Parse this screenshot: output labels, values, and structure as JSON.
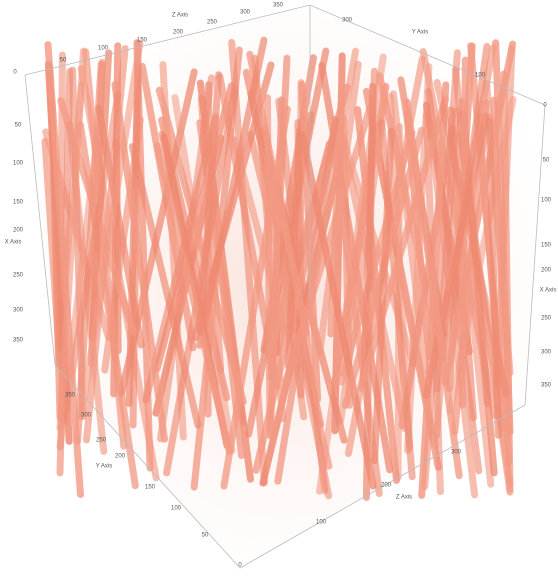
{
  "axes": {
    "z_top": {
      "label": "Z Axis",
      "ticks": [
        "0",
        "50",
        "100",
        "150",
        "200",
        "250",
        "300",
        "350"
      ]
    },
    "y_top": {
      "label": "Y Axis",
      "ticks": [
        "300",
        "100",
        "0"
      ]
    },
    "x_left": {
      "label": "X Axis",
      "ticks": [
        "50",
        "100",
        "150",
        "200",
        "250",
        "300",
        "350"
      ]
    },
    "x_right": {
      "label": "X Axis",
      "ticks": [
        "50",
        "100",
        "150",
        "200",
        "250",
        "300",
        "350"
      ]
    },
    "y_bottom": {
      "label": "Y Axis",
      "ticks": [
        "350",
        "300",
        "250",
        "200",
        "150",
        "100",
        "50",
        "0"
      ]
    },
    "z_bottom": {
      "label": "Z Axis",
      "ticks": [
        "100",
        "200",
        "300"
      ]
    }
  }
}
